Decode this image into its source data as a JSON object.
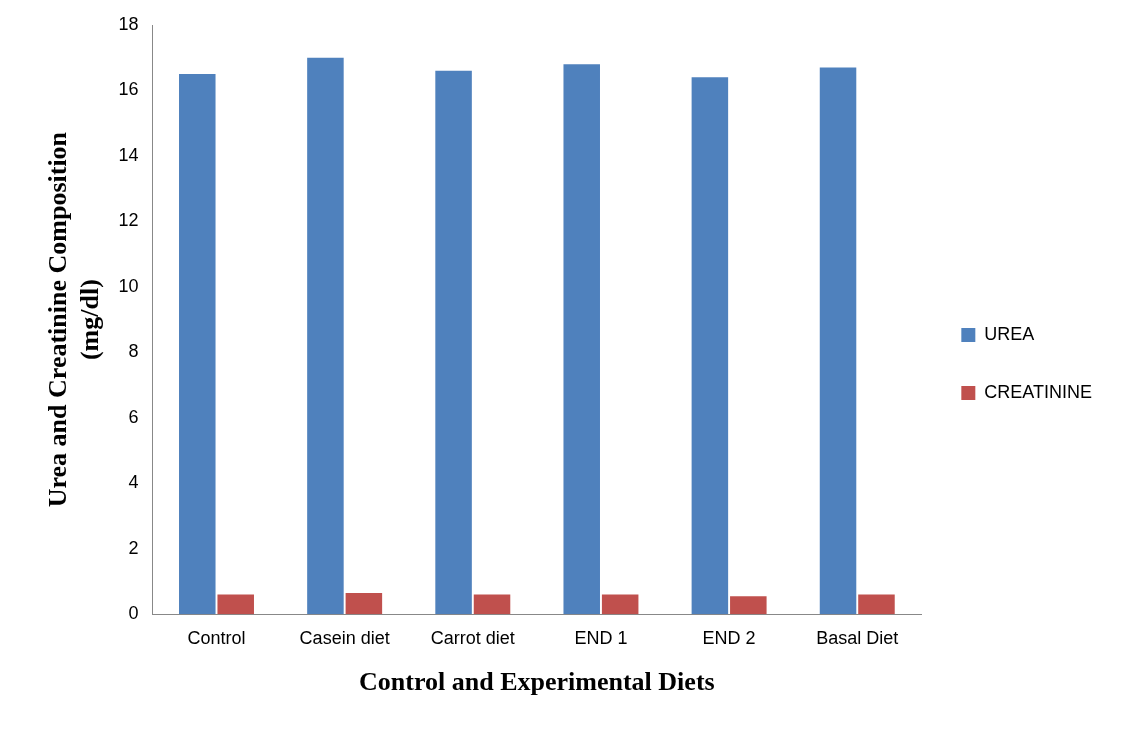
{
  "chart_data": {
    "type": "bar",
    "xlabel": "Control and Experimental Diets",
    "ylabel": "Urea and Creatinine Composition (mg/dl)",
    "categories": [
      "Control",
      "Casein diet",
      "Carrot diet",
      "END 1",
      "END 2",
      "Basal Diet"
    ],
    "series": [
      {
        "name": "UREA",
        "color": "#4f81bd",
        "values": [
          16.5,
          17.0,
          16.6,
          16.8,
          16.4,
          16.7
        ]
      },
      {
        "name": "CREATININE",
        "color": "#c0504d",
        "values": [
          0.6,
          0.65,
          0.6,
          0.6,
          0.55,
          0.6
        ]
      }
    ],
    "ylim": [
      0,
      18
    ],
    "yticks": [
      0,
      2,
      4,
      6,
      8,
      10,
      12,
      14,
      16,
      18
    ],
    "grid": false,
    "legend": "right"
  }
}
